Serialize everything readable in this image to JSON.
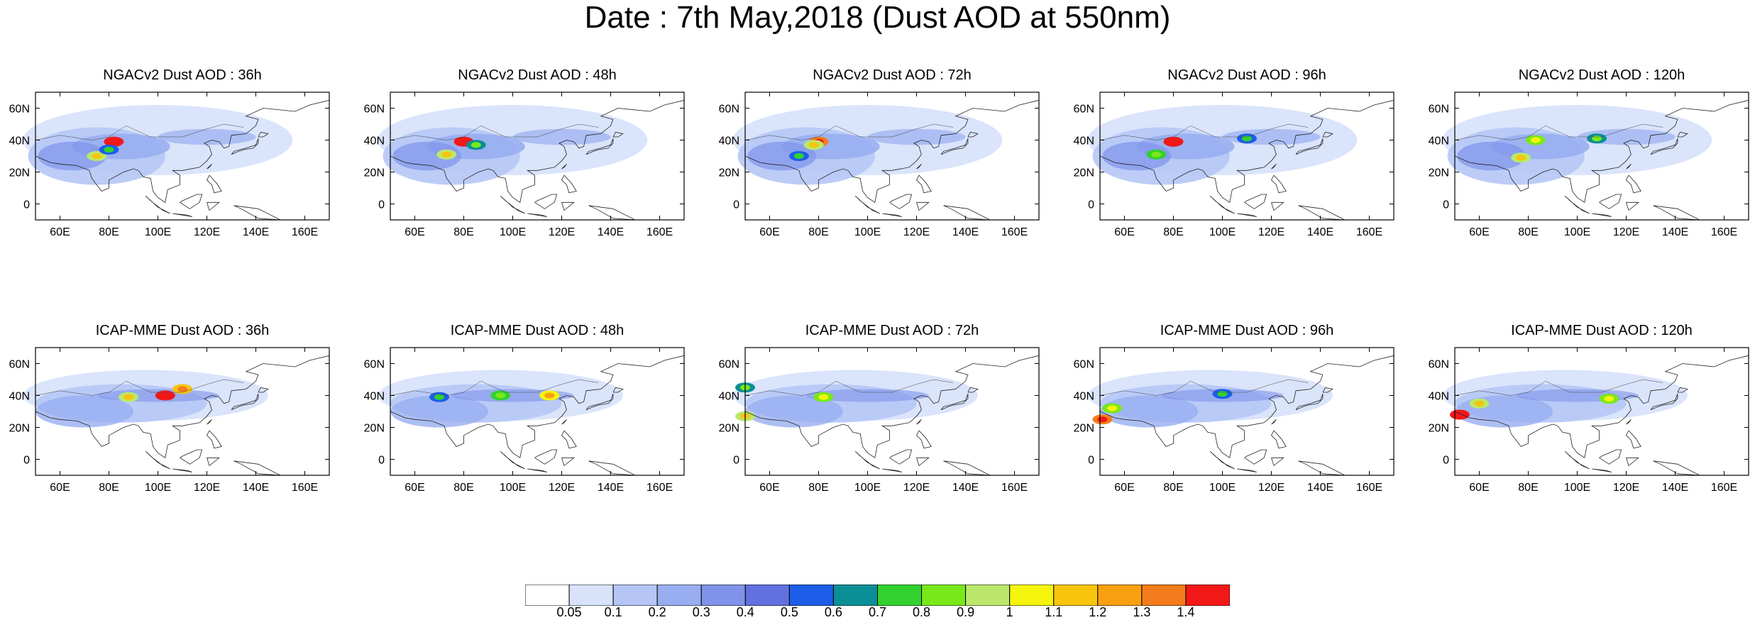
{
  "title": "Date : 7th May,2018 (Dust AOD at 550nm)",
  "chart_data": {
    "type": "heatmap",
    "rows": [
      {
        "model": "NGACv2",
        "panels": [
          {
            "title": "NGACv2 Dust AOD : 36h",
            "hotspots": [
              {
                "lon": 82,
                "lat": 39,
                "aod": 1.4
              },
              {
                "lon": 75,
                "lat": 30,
                "aod": 0.9
              },
              {
                "lon": 80,
                "lat": 34,
                "aod": 0.5
              }
            ]
          },
          {
            "title": "NGACv2 Dust AOD : 48h",
            "hotspots": [
              {
                "lon": 80,
                "lat": 39,
                "aod": 1.4
              },
              {
                "lon": 73,
                "lat": 31,
                "aod": 0.9
              },
              {
                "lon": 85,
                "lat": 37,
                "aod": 0.6
              }
            ]
          },
          {
            "title": "NGACv2 Dust AOD : 72h",
            "hotspots": [
              {
                "lon": 80,
                "lat": 39,
                "aod": 1.3
              },
              {
                "lon": 78,
                "lat": 37,
                "aod": 0.9
              },
              {
                "lon": 72,
                "lat": 30,
                "aod": 0.5
              }
            ]
          },
          {
            "title": "NGACv2 Dust AOD : 96h",
            "hotspots": [
              {
                "lon": 80,
                "lat": 39,
                "aod": 1.4
              },
              {
                "lon": 73,
                "lat": 31,
                "aod": 0.7
              },
              {
                "lon": 110,
                "lat": 41,
                "aod": 0.5
              }
            ]
          },
          {
            "title": "NGACv2 Dust AOD : 120h",
            "hotspots": [
              {
                "lon": 83,
                "lat": 40,
                "aod": 0.8
              },
              {
                "lon": 77,
                "lat": 29,
                "aod": 0.9
              },
              {
                "lon": 108,
                "lat": 41,
                "aod": 0.6
              }
            ]
          }
        ]
      },
      {
        "model": "ICAP-MME",
        "panels": [
          {
            "title": "ICAP-MME Dust AOD : 36h",
            "hotspots": [
              {
                "lon": 103,
                "lat": 40,
                "aod": 1.4
              },
              {
                "lon": 110,
                "lat": 44,
                "aod": 1.1
              },
              {
                "lon": 88,
                "lat": 39,
                "aod": 0.9
              }
            ]
          },
          {
            "title": "ICAP-MME Dust AOD : 48h",
            "hotspots": [
              {
                "lon": 115,
                "lat": 40,
                "aod": 1.0
              },
              {
                "lon": 95,
                "lat": 40,
                "aod": 0.7
              },
              {
                "lon": 70,
                "lat": 39,
                "aod": 0.5
              }
            ]
          },
          {
            "title": "ICAP-MME Dust AOD : 72h",
            "hotspots": [
              {
                "lon": 50,
                "lat": 27,
                "aod": 0.9
              },
              {
                "lon": 82,
                "lat": 39,
                "aod": 0.8
              },
              {
                "lon": 50,
                "lat": 45,
                "aod": 0.6
              }
            ]
          },
          {
            "title": "ICAP-MME Dust AOD : 96h",
            "hotspots": [
              {
                "lon": 51,
                "lat": 25,
                "aod": 1.3
              },
              {
                "lon": 55,
                "lat": 32,
                "aod": 0.8
              },
              {
                "lon": 100,
                "lat": 41,
                "aod": 0.5
              }
            ]
          },
          {
            "title": "ICAP-MME Dust AOD : 120h",
            "hotspots": [
              {
                "lon": 52,
                "lat": 28,
                "aod": 1.4
              },
              {
                "lon": 60,
                "lat": 35,
                "aod": 0.9
              },
              {
                "lon": 113,
                "lat": 38,
                "aod": 0.8
              }
            ]
          }
        ]
      }
    ],
    "x_ticks": [
      "60E",
      "80E",
      "100E",
      "120E",
      "140E",
      "160E"
    ],
    "x_tick_values": [
      60,
      80,
      100,
      120,
      140,
      160
    ],
    "y_ticks": [
      "60N",
      "40N",
      "20N",
      "0"
    ],
    "y_tick_values": [
      60,
      40,
      20,
      0
    ],
    "xlim": [
      50,
      170
    ],
    "ylim": [
      -10,
      70
    ],
    "colorbar": {
      "labels": [
        "0.05",
        "0.1",
        "0.2",
        "0.3",
        "0.4",
        "0.5",
        "0.6",
        "0.7",
        "0.8",
        "0.9",
        "1",
        "1.1",
        "1.2",
        "1.3",
        "1.4"
      ],
      "colors": [
        "#ffffff",
        "#d8e3fb",
        "#b5c6f6",
        "#98aef0",
        "#7f93ea",
        "#6270e0",
        "#1d5ee8",
        "#0b8f96",
        "#32d12f",
        "#79e81a",
        "#bbe86b",
        "#f4f40c",
        "#f8c40c",
        "#f8a010",
        "#f57c1c",
        "#f21818"
      ]
    }
  }
}
